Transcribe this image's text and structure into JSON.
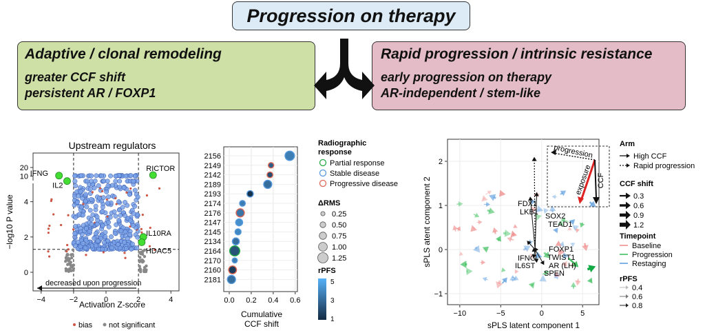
{
  "header": {
    "title": "Progression on therapy"
  },
  "left_panel": {
    "heading": "Adaptive / clonal remodeling",
    "lines": [
      "greater CCF shift",
      "persistent AR / FOXP1"
    ]
  },
  "right_panel": {
    "heading": "Rapid progression / intrinsic resistance",
    "lines": [
      "early progression on therapy",
      "AR-independent / stem-like"
    ]
  },
  "colors": {
    "green_panel": "#cfe0a6",
    "pink_panel": "#e3bcc8",
    "title_panel": "#dcebf5",
    "point_blue": "#7aa2e8",
    "highlight_green": "#44dd33",
    "bias_red": "#cc5544"
  },
  "chart_data": [
    {
      "type": "scatter",
      "title": "Upstream regulators",
      "xlabel": "Activation Z-score",
      "ylabel": "−log10 P value",
      "xlim": [
        -4.5,
        4.5
      ],
      "x_ticks": [
        "−4",
        "−2",
        "0",
        "2",
        "4"
      ],
      "y_ticks": [
        "0",
        "2",
        "4",
        "10",
        "20"
      ],
      "thresholds": {
        "x": [
          -2,
          2
        ],
        "y": 1.3
      },
      "labeled_points": [
        {
          "name": "IFNG",
          "x": -2.9,
          "y": 10.5
        },
        {
          "name": "IL2",
          "x": -2.4,
          "y": 5.2
        },
        {
          "name": "RICTOR",
          "x": 2.9,
          "y": 11
        },
        {
          "name": "IL10RA",
          "x": 2.3,
          "y": 2.0
        },
        {
          "name": "HDAC5",
          "x": 2.2,
          "y": 1.7
        }
      ],
      "annotation": "decreased upon progression",
      "legend": [
        "bias",
        "not significant"
      ]
    },
    {
      "type": "scatter",
      "xlabel": "Cumulative\nCCF shift",
      "xlim": [
        -0.05,
        0.62
      ],
      "x_ticks": [
        "0.0",
        "0.2",
        "0.4",
        "0.6"
      ],
      "categories": [
        "2156",
        "2149",
        "2142",
        "2189",
        "2193",
        "2174",
        "2176",
        "2147",
        "2145",
        "2134",
        "2164",
        "2170",
        "2160",
        "2181"
      ],
      "ccf_shift": [
        0.55,
        0.38,
        0.37,
        0.35,
        0.19,
        0.12,
        0.1,
        0.09,
        0.08,
        0.06,
        0.05,
        0.05,
        0.03,
        0.02
      ],
      "delta_rms": [
        1.1,
        0.45,
        0.5,
        0.9,
        0.6,
        0.5,
        0.9,
        0.7,
        0.55,
        0.7,
        1.2,
        0.4,
        0.85,
        0.9
      ],
      "rpfs": [
        3.5,
        2.5,
        2.0,
        3.0,
        1.2,
        3.5,
        3.2,
        4.0,
        3.8,
        3.0,
        2.2,
        3.5,
        1.5,
        3.0
      ],
      "response": [
        "stable",
        "progressive",
        "progressive",
        "stable",
        "stable",
        "stable",
        "progressive",
        "stable",
        "stable",
        "stable",
        "partial",
        "stable",
        "progressive",
        "stable"
      ],
      "legend": {
        "response_title": [
          "Radiographic",
          "response"
        ],
        "response_items": [
          "Partial response",
          "Stable disease",
          "Progressive disease"
        ],
        "size_title": "ΔRMS",
        "size_items": [
          "0.25",
          "0.50",
          "0.75",
          "1.00",
          "1.25"
        ],
        "color_title": "rPFS",
        "color_ticks": [
          "5",
          "3",
          "1"
        ]
      }
    },
    {
      "type": "scatter",
      "xlabel": "sPLS latent component 1",
      "ylabel": "sPLS atent component 2",
      "xlim": [
        -11.5,
        7
      ],
      "ylim": [
        -1.25,
        2.5
      ],
      "x_ticks": [
        "−10",
        "−5",
        "0",
        "5"
      ],
      "y_ticks": [
        "−1",
        "0",
        "1",
        "2"
      ],
      "loadings": [
        "FDX1",
        "LKB1",
        "SOX2",
        "TEAD1",
        "FOXP1",
        "TWIST1",
        "IFNG",
        "AR (LH)",
        "IL6ST",
        "SPEN"
      ],
      "inset_labels": [
        "progression",
        "exposure",
        "CCF"
      ],
      "legend": {
        "arm_title": "Arm",
        "arm_items": [
          "High CCF",
          "Rapid progression"
        ],
        "ccf_title": "CCF shift",
        "ccf_items": [
          "0.3",
          "0.6",
          "0.9",
          "1.2"
        ],
        "timepoint_title": "Timepoint",
        "timepoint_items": [
          "Baseline",
          "Progression",
          "Restaging"
        ],
        "timepoint_colors": [
          "#ee8888",
          "#33bb55",
          "#5599dd"
        ],
        "rpfs_title": "rPFS",
        "rpfs_items": [
          "0.4",
          "0.6",
          "0.8"
        ]
      }
    }
  ]
}
